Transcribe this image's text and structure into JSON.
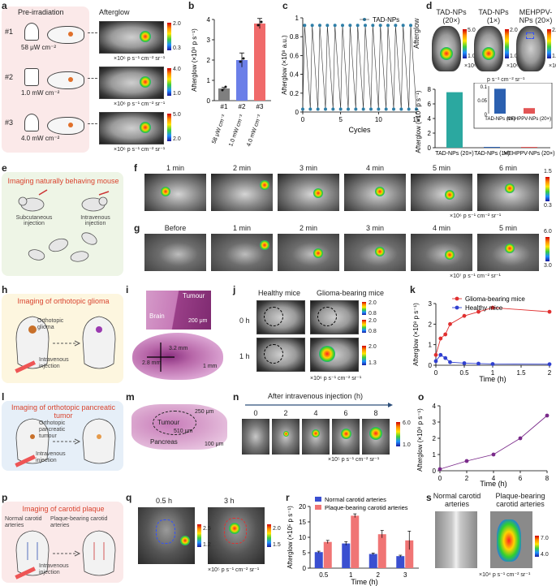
{
  "panels": {
    "a": {
      "label": "a",
      "pre_irradiation": "Pre-irradiation",
      "afterglow": "Afterglow",
      "rows": [
        {
          "num": "#1",
          "power": "58 μW cm⁻²",
          "cbar_max": "2.0",
          "cbar_min": "0.3",
          "unit": "×10⁶ p s⁻¹ cm⁻² sr⁻¹"
        },
        {
          "num": "#2",
          "power": "1.0 mW cm⁻²",
          "cbar_max": "4.0",
          "cbar_min": "1.0",
          "unit": "×10⁶ p s⁻¹ cm⁻² sr⁻¹"
        },
        {
          "num": "#3",
          "power": "4.0 mW cm⁻²",
          "cbar_max": "5.0",
          "cbar_min": "2.0",
          "unit": "×10⁶ p s⁻¹ cm⁻² sr⁻¹"
        }
      ]
    },
    "b": {
      "label": "b",
      "ylabel": "Afterglow (×10⁸ p s⁻¹)"
    },
    "c": {
      "label": "c",
      "ylabel": "Afterglow (×10⁸ a.u.)",
      "xlabel": "Cycles",
      "legend": "TAD-NPs"
    },
    "d": {
      "label": "d",
      "ylabel_top": "Afterglow",
      "img_labels": [
        "TAD-NPs (20×)",
        "TAD-NPs (1×)",
        "MEHPPV-NPs (20×)"
      ],
      "cbar_vals": [
        [
          "5.0",
          "1.0",
          "×10⁶"
        ],
        [
          "2.0",
          "1.0",
          "×10⁶"
        ],
        [
          "2.0",
          "1.0",
          "×10⁶"
        ]
      ],
      "unit": "p s⁻¹ cm⁻² sr⁻¹",
      "ylabel_bottom": "Afterglow (×10⁷ p s⁻¹)"
    },
    "e": {
      "label": "e",
      "title": "Imaging naturally behaving mouse",
      "sub1": "Subcutaneous injection",
      "sub2": "Intravenous injection"
    },
    "f": {
      "label": "f",
      "times": [
        "1 min",
        "2 min",
        "3 min",
        "4 min",
        "5 min",
        "6 min"
      ],
      "cbar_max": "1.5",
      "cbar_min": "0.3",
      "unit": "×10⁶ p s⁻¹ cm⁻² sr⁻¹"
    },
    "g": {
      "label": "g",
      "times": [
        "Before",
        "1 min",
        "2 min",
        "3 min",
        "4 min",
        "5 min"
      ],
      "cbar_max": "6.0",
      "cbar_min": "3.0",
      "unit": "×10⁷ p s⁻¹ cm⁻² sr⁻¹"
    },
    "h": {
      "label": "h",
      "title": "Imaging of orthotopic glioma",
      "sub1": "Orthotopic glioma",
      "sub2": "Intravenous injection"
    },
    "i": {
      "label": "i",
      "tumour": "Tumour",
      "brain": "Brain",
      "scale1": "200 μm",
      "dim1": "3.2 mm",
      "dim2": "2.8 mm",
      "scale2": "1 mm"
    },
    "j": {
      "label": "j",
      "col1": "Healthy mice",
      "col2": "Glioma-bearing mice",
      "row1": "0 h",
      "row2": "1 h",
      "cbar1": [
        "2.0",
        "0.8"
      ],
      "cbar2": [
        "2.0",
        "0.8"
      ],
      "cbar3": [
        "2.0",
        "1.3"
      ],
      "unit": "×10⁶ p s⁻¹ cm⁻² sr⁻¹"
    },
    "k": {
      "label": "k",
      "ylabel": "Afterglow (×10⁸ p s⁻¹)",
      "xlabel": "Time (h)"
    },
    "l": {
      "label": "l",
      "title": "Imaging of orthotopic pancreatic tumor",
      "sub1": "Orthotopic pancreatic tumour",
      "sub2": "Intravenous injection"
    },
    "m": {
      "label": "m",
      "tumour": "Tumour",
      "pancreas": "Pancreas",
      "dim1": "250 μm",
      "dim2": "510 μm",
      "scale": "100 μm"
    },
    "n": {
      "label": "n",
      "header": "After intravenous injection (h)",
      "times": [
        "0",
        "2",
        "4",
        "6",
        "8"
      ],
      "cbar_max": "6.0",
      "cbar_min": "1.0",
      "unit": "×10⁵ p s⁻¹ cm⁻² sr⁻¹"
    },
    "o": {
      "label": "o",
      "ylabel": "Afterglow (×10⁸ p s⁻¹)",
      "xlabel": "Time (h)"
    },
    "p": {
      "label": "p",
      "title": "Imaging of carotid plaque",
      "sub1": "Normal carotid arteries",
      "sub2": "Plaque-bearing carotid arteries",
      "sub3": "Intravenous injection"
    },
    "q": {
      "label": "q",
      "times": [
        "0.5 h",
        "3 h"
      ],
      "cbar1": [
        "2.5",
        "1.2"
      ],
      "cbar2": [
        "2.0",
        "1.5"
      ],
      "unit": "×10⁵ p s⁻¹ cm⁻² sr⁻¹"
    },
    "r": {
      "label": "r",
      "ylabel": "Afterglow (×10⁵ p s⁻¹)",
      "xlabel": "Time (h)"
    },
    "s": {
      "label": "s",
      "col1": "Normal carotid arteries",
      "col2": "Plaque-bearing carotid arteries",
      "cbar_max": "7.0",
      "cbar_min": "4.0",
      "unit": "×10⁴ p s⁻¹ cm⁻² sr⁻¹"
    }
  },
  "chart_data": [
    {
      "id": "b",
      "type": "bar",
      "categories": [
        "#1",
        "#2",
        "#3"
      ],
      "sublabels": [
        "58 μW cm⁻²",
        "1.0 mW cm⁻²",
        "4.0 mW cm⁻²"
      ],
      "values": [
        0.6,
        2.0,
        3.8
      ],
      "errors": [
        0.05,
        0.35,
        0.25
      ],
      "colors": [
        "#7f7f7f",
        "#6b7fe8",
        "#f06a6a"
      ],
      "ylim": [
        0,
        4
      ],
      "yticks": [
        0,
        1,
        2,
        3,
        4
      ]
    },
    {
      "id": "c",
      "type": "line",
      "series": [
        {
          "name": "TAD-NPs",
          "color": "#2f7fa8"
        }
      ],
      "cycles": 15,
      "high": 0.92,
      "low": 0.03,
      "xlim": [
        0,
        15
      ],
      "xticks": [
        0,
        5,
        10,
        15
      ],
      "ylim": [
        0,
        1.0
      ],
      "yticks": [
        0,
        0.2,
        0.4,
        0.6,
        0.8,
        1.0
      ]
    },
    {
      "id": "d",
      "type": "bar",
      "categories": [
        "TAD-NPs (20×)",
        "TAD-NPs (1×)",
        "MEHPPV-NPs (20×)"
      ],
      "values": [
        7.6,
        0.09,
        0.02
      ],
      "colors": [
        "#2ba8a0",
        "#2b60b0",
        "#e25555"
      ],
      "ylim": [
        0,
        8
      ],
      "yticks": [
        0,
        2,
        4,
        6,
        8
      ],
      "inset": {
        "ylim": [
          0,
          0.1
        ],
        "yticks": [
          0,
          0.05,
          0.1
        ]
      }
    },
    {
      "id": "k",
      "type": "line",
      "series": [
        {
          "name": "Glioma-bearing mice",
          "color": "#e03030",
          "x": [
            0,
            0.083,
            0.167,
            0.25,
            0.5,
            0.75,
            1.0,
            2.0
          ],
          "y": [
            0.5,
            1.3,
            1.5,
            2.0,
            2.4,
            2.6,
            2.8,
            2.6
          ]
        },
        {
          "name": "Healthy mice",
          "color": "#3040d0",
          "x": [
            0,
            0.083,
            0.167,
            0.25,
            0.5,
            0.75,
            1.0,
            2.0
          ],
          "y": [
            0.2,
            0.5,
            0.35,
            0.15,
            0.1,
            0.08,
            0.06,
            0.05
          ]
        }
      ],
      "xlim": [
        0,
        2.0
      ],
      "xticks": [
        0,
        0.5,
        1.0,
        1.5,
        2.0
      ],
      "ylim": [
        0,
        3
      ],
      "yticks": [
        0,
        1,
        2,
        3
      ]
    },
    {
      "id": "o",
      "type": "line",
      "series": [
        {
          "name": "",
          "color": "#7a2a8a",
          "x": [
            0,
            2,
            4,
            6,
            8
          ],
          "y": [
            0.1,
            0.6,
            1.0,
            2.0,
            3.4
          ]
        }
      ],
      "xlim": [
        0,
        8
      ],
      "xticks": [
        0,
        2,
        4,
        6,
        8
      ],
      "ylim": [
        0,
        4
      ],
      "yticks": [
        0,
        1,
        2,
        3,
        4
      ]
    },
    {
      "id": "r",
      "type": "bar",
      "categories": [
        "0.5",
        "1",
        "2",
        "3"
      ],
      "series": [
        {
          "name": "Normal carotid arteries",
          "color": "#3a4fd0",
          "values": [
            5.2,
            8.0,
            4.6,
            3.9
          ],
          "errors": [
            0.3,
            0.6,
            0.3,
            0.3
          ]
        },
        {
          "name": "Plaque-bearing carotid arteries",
          "color": "#f07575",
          "values": [
            8.5,
            17.0,
            11.0,
            9.0
          ],
          "errors": [
            0.5,
            0.6,
            1.2,
            3.0
          ]
        }
      ],
      "ylim": [
        0,
        20
      ],
      "yticks": [
        0,
        5,
        10,
        15,
        20
      ]
    }
  ]
}
